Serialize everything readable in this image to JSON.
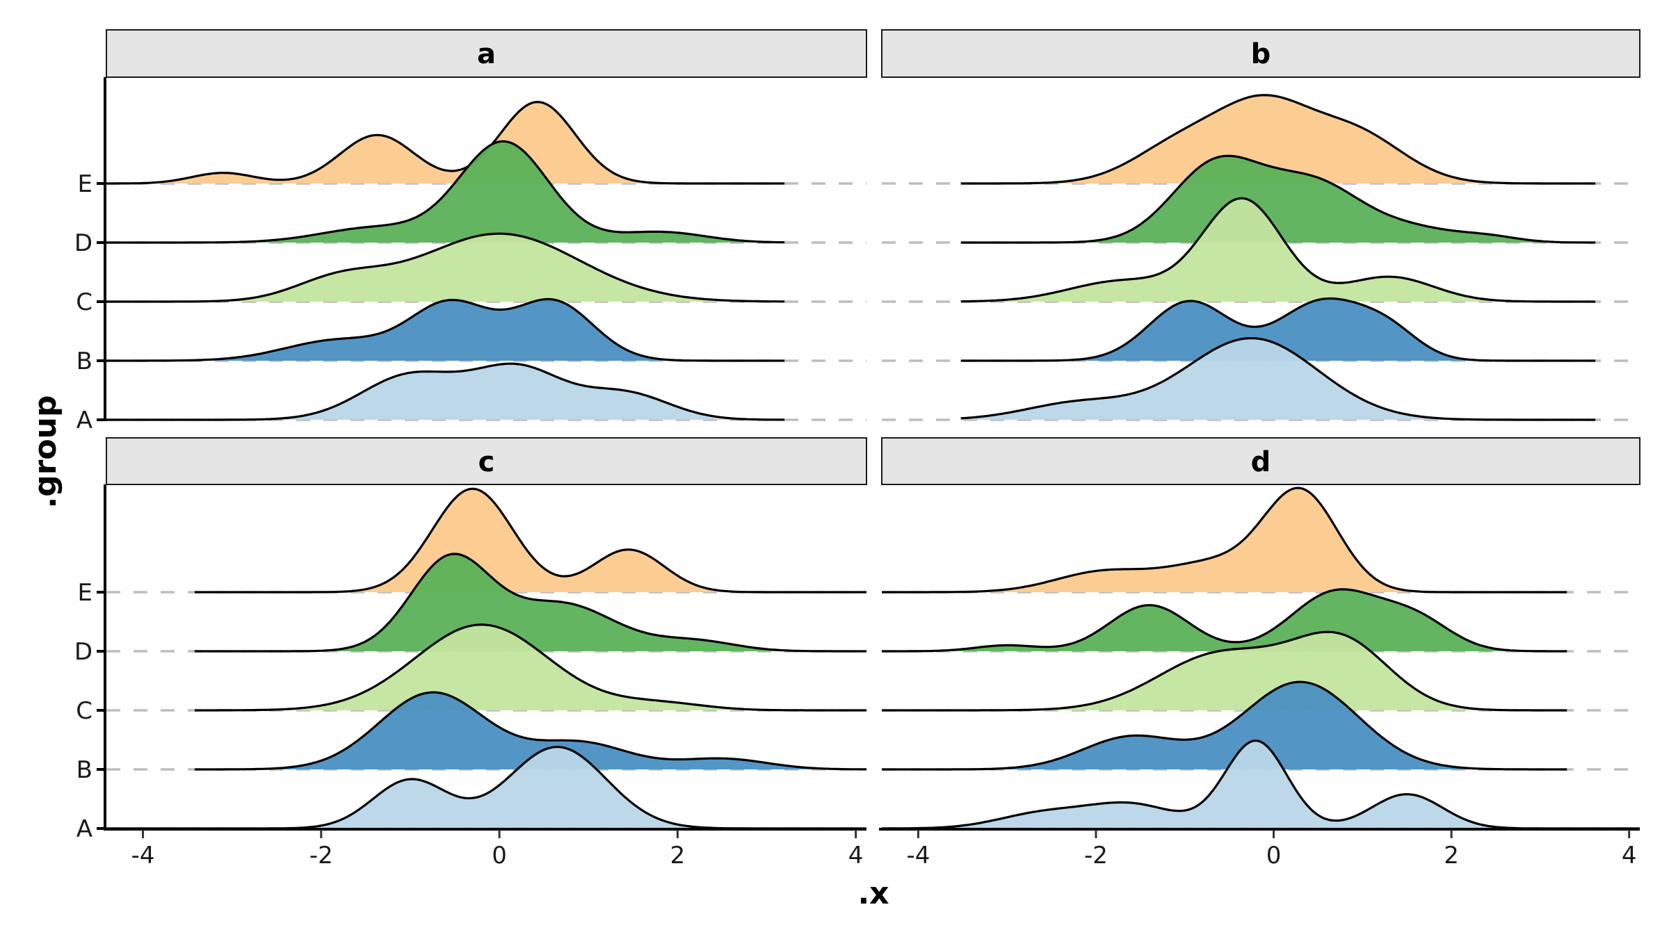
{
  "chart_data": {
    "type": "ridgeline",
    "title": "",
    "xlabel": ".x",
    "ylabel": ".group",
    "xlim": [
      -4.41,
      4.12
    ],
    "xticks": [
      -4,
      -2,
      0,
      2,
      4
    ],
    "xtick_labels": [
      "-4",
      "-2",
      "0",
      "2",
      "4"
    ],
    "groups": [
      "A",
      "B",
      "C",
      "D",
      "E"
    ],
    "colors": {
      "A": "#b8d6e8",
      "B": "#4a90c2",
      "C": "#c3e59f",
      "D": "#5bb158",
      "E": "#fcca8c"
    },
    "grid": "dashed horizontal at each group baseline",
    "legend": "none",
    "facets": [
      {
        "label": "a",
        "series": [
          {
            "group": "A",
            "range": [
              -4.41,
              3.2
            ],
            "components": [
              [
                -1.0,
                0.75,
                0.55
              ],
              [
                0.2,
                0.85,
                0.5
              ],
              [
                1.4,
                0.45,
                0.5
              ]
            ]
          },
          {
            "group": "B",
            "range": [
              -4.41,
              3.2
            ],
            "components": [
              [
                -1.8,
                0.35,
                0.6
              ],
              [
                -0.55,
                0.95,
                0.45
              ],
              [
                0.6,
                1.0,
                0.45
              ]
            ]
          },
          {
            "group": "C",
            "range": [
              -4.41,
              3.2
            ],
            "components": [
              [
                -1.8,
                0.35,
                0.5
              ],
              [
                0.0,
                1.15,
                0.9
              ]
            ]
          },
          {
            "group": "D",
            "range": [
              -4.41,
              3.2
            ],
            "components": [
              [
                -1.4,
                0.25,
                0.6
              ],
              [
                0.05,
                1.7,
                0.5
              ],
              [
                1.8,
                0.18,
                0.5
              ]
            ]
          },
          {
            "group": "E",
            "range": [
              -4.41,
              3.2
            ],
            "components": [
              [
                -3.1,
                0.18,
                0.35
              ],
              [
                -1.37,
                0.82,
                0.42
              ],
              [
                0.43,
                1.38,
                0.42
              ]
            ]
          }
        ]
      },
      {
        "label": "b",
        "series": [
          {
            "group": "A",
            "range": [
              -3.52,
              3.62
            ],
            "components": [
              [
                -2.2,
                0.28,
                0.6
              ],
              [
                -0.25,
                1.38,
                0.75
              ]
            ]
          },
          {
            "group": "B",
            "range": [
              -3.52,
              3.62
            ],
            "components": [
              [
                -0.95,
                1.0,
                0.45
              ],
              [
                0.55,
                1.0,
                0.5
              ],
              [
                1.3,
                0.4,
                0.35
              ]
            ]
          },
          {
            "group": "C",
            "range": [
              -3.52,
              3.62
            ],
            "components": [
              [
                -1.7,
                0.35,
                0.6
              ],
              [
                -0.35,
                1.72,
                0.45
              ],
              [
                1.3,
                0.42,
                0.5
              ]
            ]
          },
          {
            "group": "D",
            "range": [
              -3.52,
              3.62
            ],
            "components": [
              [
                -0.65,
                1.3,
                0.5
              ],
              [
                0.45,
                1.0,
                0.55
              ],
              [
                2.4,
                0.1,
                0.35
              ],
              [
                1.6,
                0.2,
                0.45
              ]
            ]
          },
          {
            "group": "E",
            "range": [
              -3.52,
              3.62
            ],
            "components": [
              [
                -1.0,
                0.7,
                0.55
              ],
              [
                -0.1,
                1.15,
                0.5
              ],
              [
                0.9,
                0.85,
                0.55
              ]
            ]
          }
        ]
      },
      {
        "label": "c",
        "series": [
          {
            "group": "A",
            "range": [
              -4.41,
              4.12
            ],
            "components": [
              [
                -1.0,
                0.82,
                0.42
              ],
              [
                0.65,
                1.38,
                0.55
              ]
            ]
          },
          {
            "group": "B",
            "range": [
              -3.42,
              4.12
            ],
            "components": [
              [
                -0.75,
                1.3,
                0.6
              ],
              [
                0.9,
                0.45,
                0.55
              ],
              [
                2.5,
                0.18,
                0.5
              ]
            ]
          },
          {
            "group": "C",
            "range": [
              -3.42,
              4.12
            ],
            "components": [
              [
                -0.2,
                1.45,
                0.75
              ],
              [
                1.8,
                0.12,
                0.5
              ]
            ]
          },
          {
            "group": "D",
            "range": [
              -3.42,
              4.12
            ],
            "components": [
              [
                -0.55,
                1.55,
                0.45
              ],
              [
                0.7,
                0.8,
                0.6
              ],
              [
                2.2,
                0.17,
                0.45
              ]
            ]
          },
          {
            "group": "E",
            "range": [
              -3.42,
              4.12
            ],
            "components": [
              [
                -0.3,
                1.75,
                0.45
              ],
              [
                1.45,
                0.72,
                0.4
              ]
            ]
          }
        ]
      },
      {
        "label": "d",
        "series": [
          {
            "group": "A",
            "range": [
              -4.41,
              4.12
            ],
            "components": [
              [
                -2.6,
                0.25,
                0.5
              ],
              [
                -1.6,
                0.4,
                0.5
              ],
              [
                -0.2,
                1.48,
                0.35
              ],
              [
                1.5,
                0.58,
                0.4
              ]
            ]
          },
          {
            "group": "B",
            "range": [
              -4.41,
              3.3
            ],
            "components": [
              [
                -1.6,
                0.55,
                0.55
              ],
              [
                0.3,
                1.48,
                0.65
              ]
            ]
          },
          {
            "group": "C",
            "range": [
              -4.41,
              3.3
            ],
            "components": [
              [
                -0.6,
                0.95,
                0.7
              ],
              [
                0.75,
                1.15,
                0.55
              ]
            ]
          },
          {
            "group": "D",
            "range": [
              -4.41,
              3.3
            ],
            "components": [
              [
                -3.0,
                0.1,
                0.35
              ],
              [
                -1.4,
                0.78,
                0.45
              ],
              [
                0.7,
                1.0,
                0.5
              ],
              [
                1.6,
                0.5,
                0.4
              ]
            ]
          },
          {
            "group": "E",
            "range": [
              -4.41,
              3.3
            ],
            "components": [
              [
                -1.9,
                0.35,
                0.55
              ],
              [
                -0.7,
                0.45,
                0.5
              ],
              [
                0.3,
                1.7,
                0.42
              ]
            ]
          }
        ]
      }
    ]
  }
}
